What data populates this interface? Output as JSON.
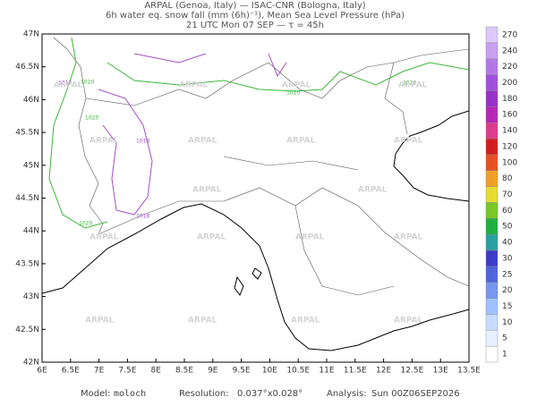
{
  "header": {
    "line1": "ARPAL (Genoa, Italy)  —  ISAC-CNR (Bologna, Italy)",
    "line2": "6h water eq. snow fall (mm (6h)⁻¹), Mean Sea Level Pressure (hPa)",
    "line3": "21 UTC Mon 07 SEP  —  τ = 45h"
  },
  "map": {
    "lon_labels": [
      "6E",
      "6.5E",
      "7E",
      "7.5E",
      "8E",
      "8.5E",
      "9E",
      "9.5E",
      "10E",
      "10.5E",
      "11E",
      "11.5E",
      "12E",
      "12.5E",
      "13E",
      "13.5E"
    ],
    "lat_labels": [
      "47N",
      "46.5N",
      "46N",
      "45.5N",
      "45N",
      "44.5N",
      "44N",
      "43.5N",
      "43N",
      "42.5N",
      "42N"
    ],
    "isobar_labels": [
      "1018",
      "1018",
      "1018",
      "1020",
      "1020",
      "1020",
      "1020",
      "1020"
    ],
    "watermark": "ARPAL"
  },
  "colorbar": {
    "labels": [
      "1",
      "5",
      "10",
      "15",
      "20",
      "25",
      "30",
      "40",
      "50",
      "60",
      "70",
      "80",
      "100",
      "120",
      "140",
      "160",
      "180",
      "200",
      "220",
      "240",
      "270"
    ],
    "colors": [
      "#ffffff",
      "#e6f0ff",
      "#c8dcff",
      "#a0c0ff",
      "#7896f0",
      "#5064dc",
      "#3c3cc8",
      "#28a0a0",
      "#20b040",
      "#78c828",
      "#e6dc32",
      "#f0a028",
      "#e65020",
      "#d21e1e",
      "#dc3c8c",
      "#b428b4",
      "#9632c8",
      "#a050dc",
      "#b478e6",
      "#c8a0f0",
      "#dcc8fa"
    ]
  },
  "footer": {
    "model_label": "Model:",
    "model": "moloch",
    "resolution_label": "Resolution:",
    "resolution": "0.037°x0.028°",
    "analysis_label": "Analysis:",
    "analysis": "Sun 00Z06SEP2026"
  }
}
